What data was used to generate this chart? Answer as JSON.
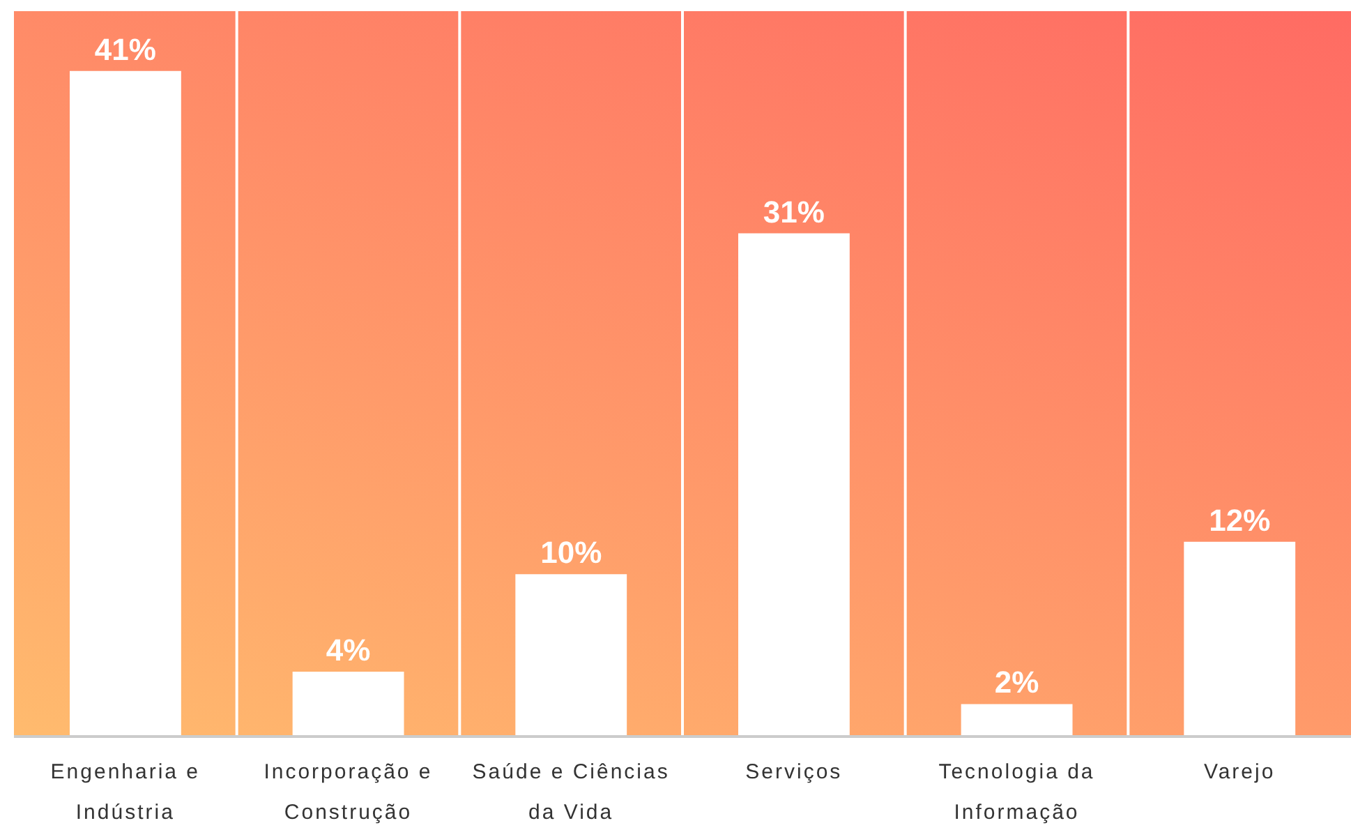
{
  "chart_data": {
    "type": "bar",
    "categories": [
      "Engenharia e Indústria",
      "Incorporação e Construção",
      "Saúde e Ciências da Vida",
      "Serviços",
      "Tecnologia da Informação",
      "Varejo"
    ],
    "values": [
      41,
      4,
      10,
      31,
      2,
      12
    ],
    "value_labels": [
      "41%",
      "4%",
      "10%",
      "31%",
      "2%",
      "12%"
    ],
    "color": "#ffffff",
    "grid": "x"
  }
}
